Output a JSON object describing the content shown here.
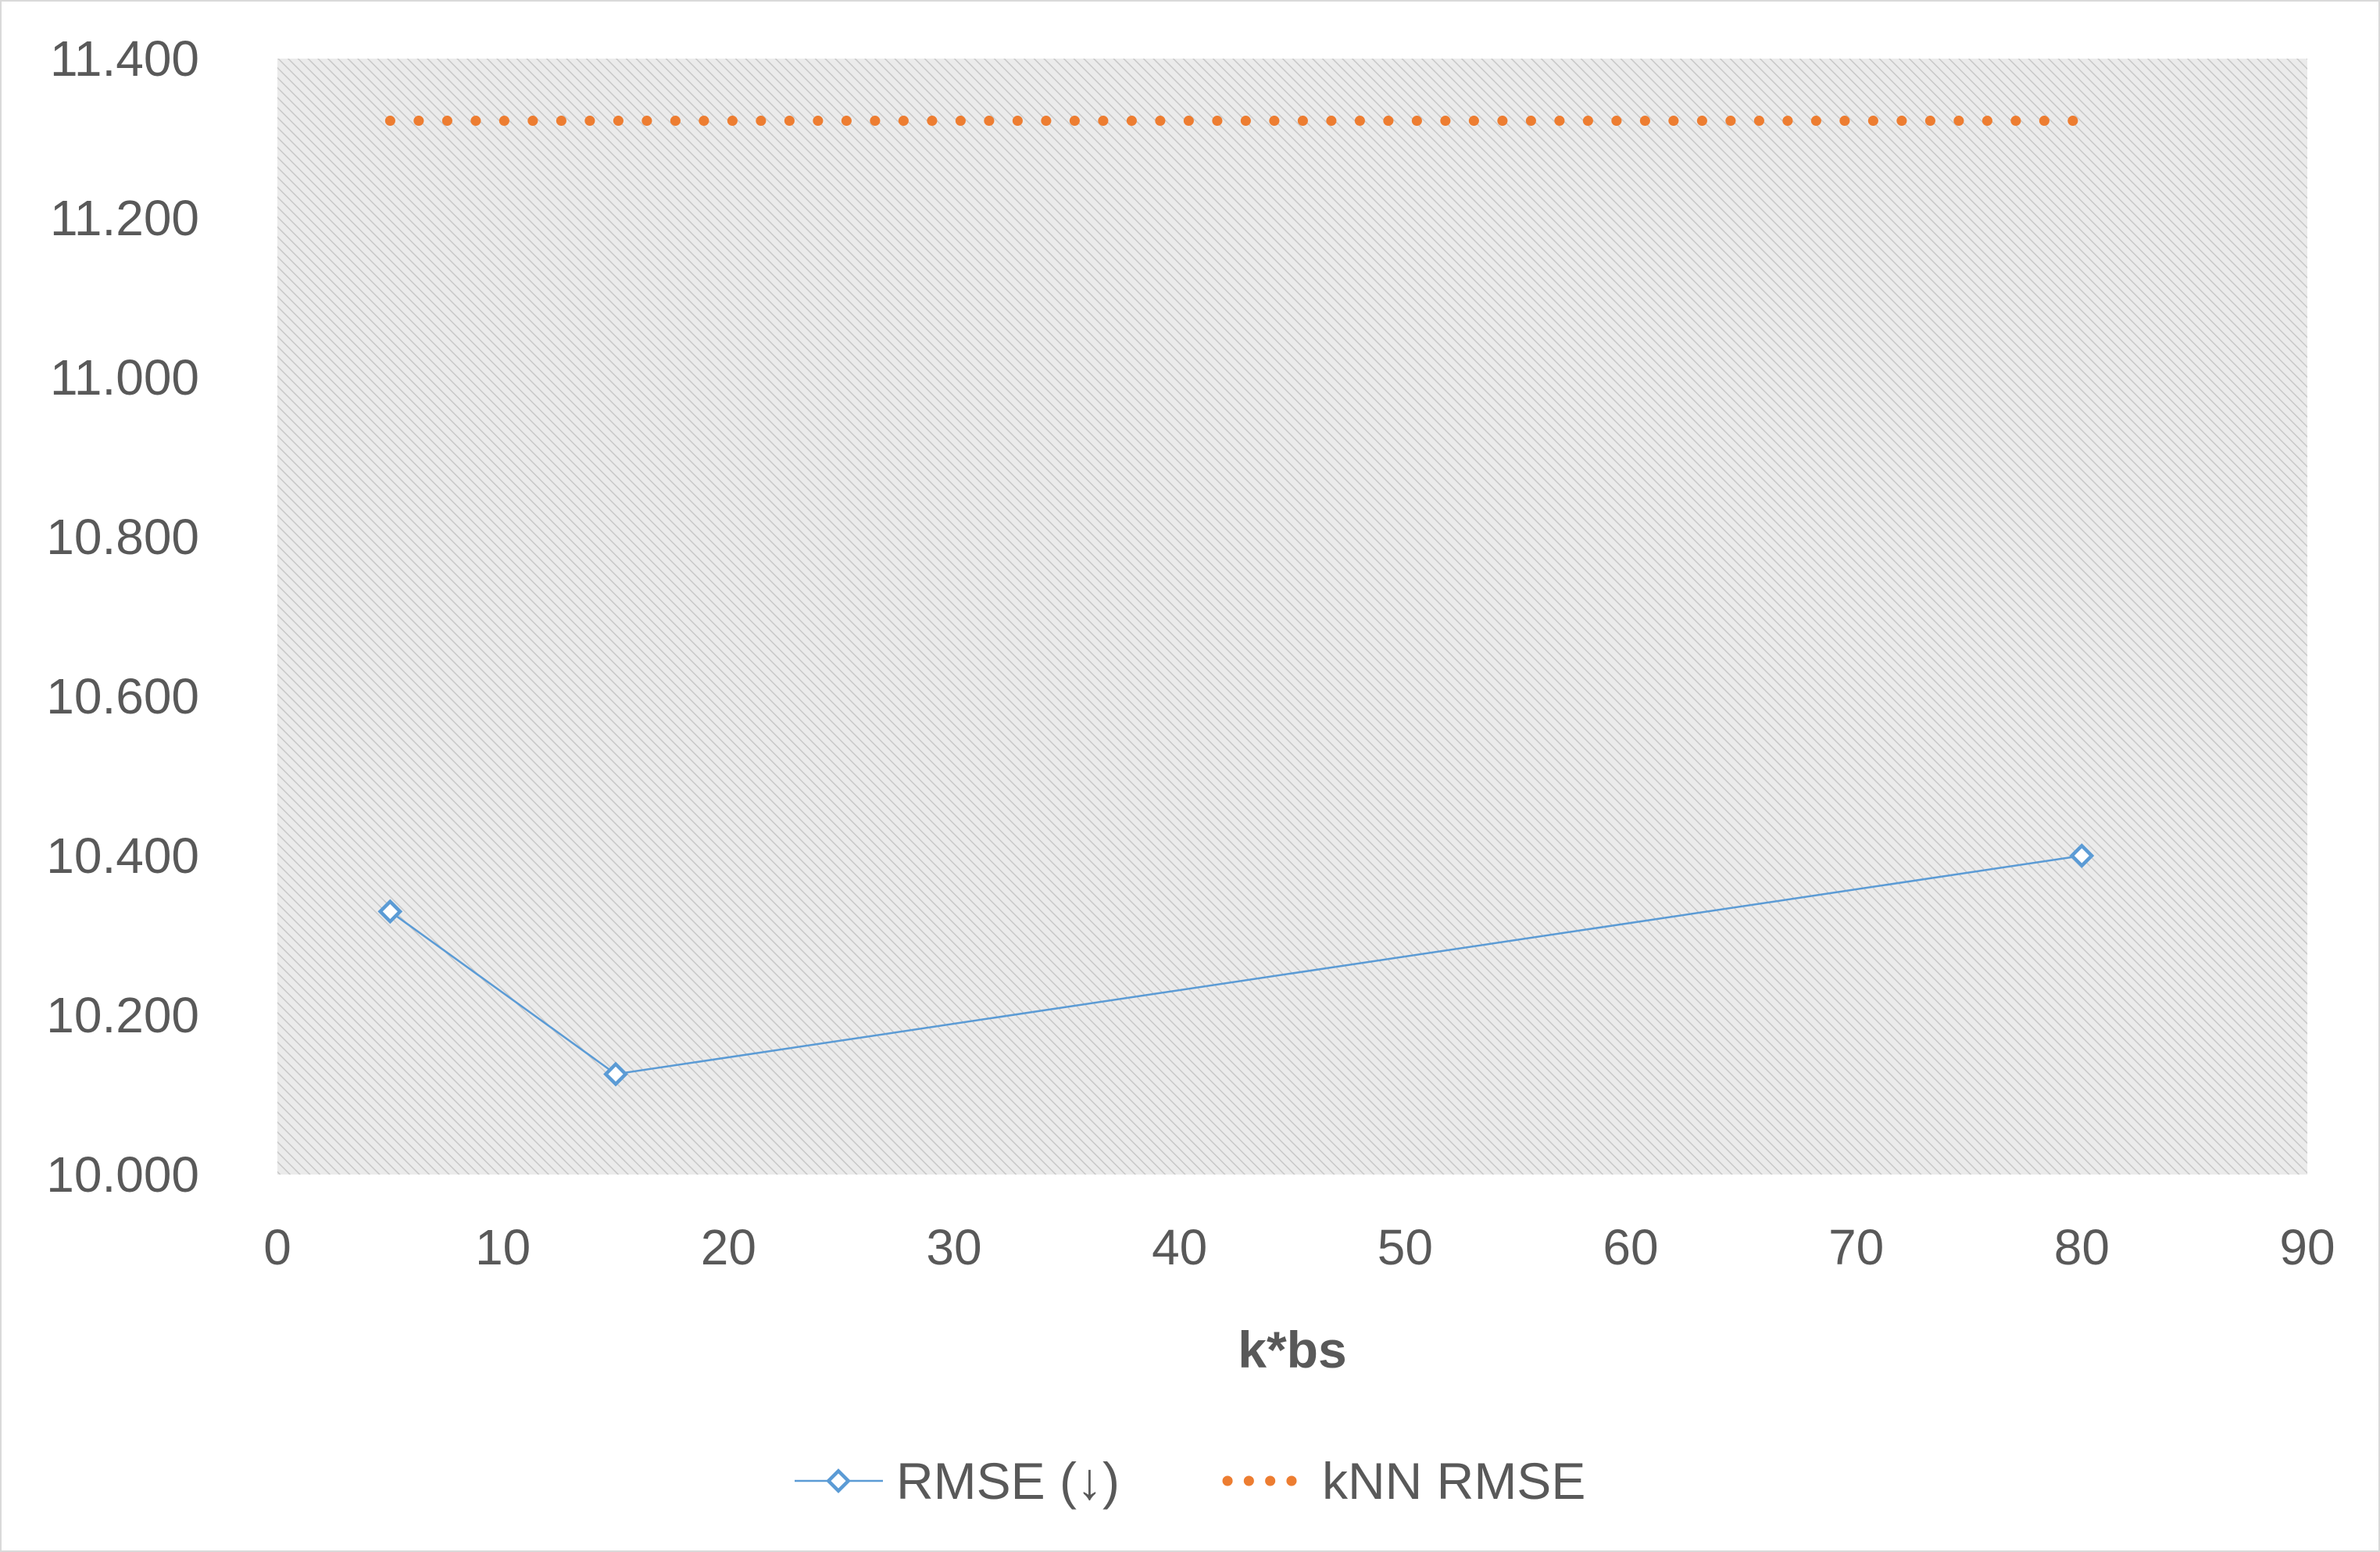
{
  "colors": {
    "rmse": "#5b9bd5",
    "knn": "#ed7d31",
    "plot_bg": "#ebebeb",
    "hatch": "#c8c8c8",
    "text": "#595959"
  },
  "chart_data": {
    "type": "line",
    "title": "",
    "xlabel": "k*bs",
    "ylabel": "",
    "xlim": [
      0,
      90
    ],
    "ylim": [
      10.0,
      11.4
    ],
    "grid": false,
    "legend_position": "bottom",
    "x_ticks": [
      "0",
      "10",
      "20",
      "30",
      "40",
      "50",
      "60",
      "70",
      "80",
      "90"
    ],
    "y_ticks": [
      "10.000",
      "10.200",
      "10.400",
      "10.600",
      "10.800",
      "11.000",
      "11.200",
      "11.400"
    ],
    "series": [
      {
        "name": "RMSE (↓)",
        "style": "line-diamond-markers",
        "color": "#5b9bd5",
        "x": [
          5,
          15,
          80
        ],
        "y": [
          10.33,
          10.126,
          10.4
        ]
      },
      {
        "name": "kNN RMSE",
        "style": "dotted",
        "color": "#ed7d31",
        "x": [
          5,
          80
        ],
        "y": [
          11.322,
          11.322
        ]
      }
    ]
  }
}
